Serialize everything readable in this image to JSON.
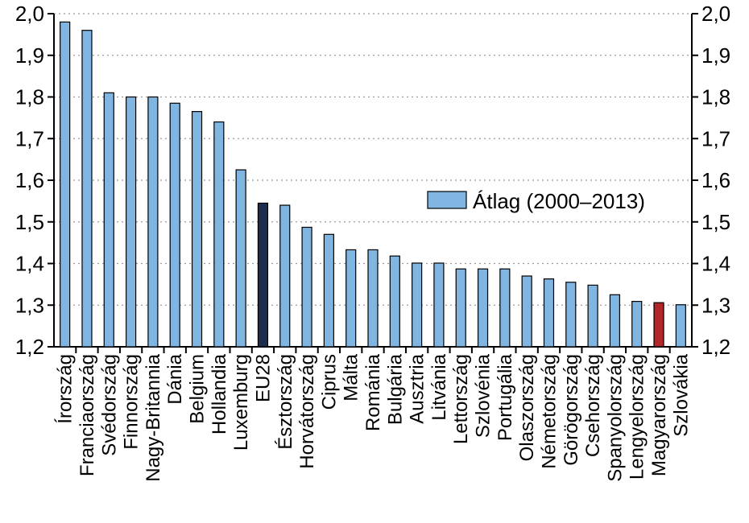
{
  "chart_data": {
    "type": "bar",
    "categories": [
      "Írország",
      "Franciaország",
      "Svédország",
      "Finnország",
      "Nagy-Britannia",
      "Dánia",
      "Belgium",
      "Hollandia",
      "Luxemburg",
      "EU28",
      "Észtország",
      "Horvátország",
      "Ciprus",
      "Málta",
      "Románia",
      "Bulgária",
      "Ausztria",
      "Litvánia",
      "Lettország",
      "Szlovénia",
      "Portugália",
      "Olaszország",
      "Németország",
      "Görögország",
      "Csehország",
      "Spanyolország",
      "Lengyelország",
      "Magyarország",
      "Szlovákia"
    ],
    "series": [
      {
        "name": "Átlag (2000–2013)",
        "values": [
          1.98,
          1.96,
          1.81,
          1.8,
          1.8,
          1.785,
          1.765,
          1.74,
          1.625,
          1.545,
          1.54,
          1.487,
          1.47,
          1.433,
          1.433,
          1.418,
          1.401,
          1.401,
          1.387,
          1.387,
          1.387,
          1.37,
          1.363,
          1.355,
          1.348,
          1.325,
          1.309,
          1.306,
          1.301
        ]
      }
    ],
    "ylim": [
      1.2,
      2.0
    ],
    "yticks": [
      "1,2",
      "1,3",
      "1,4",
      "1,5",
      "1,6",
      "1,7",
      "1,8",
      "1,9",
      "2,0"
    ],
    "grid": true,
    "legend_position": "right",
    "colors": {
      "default": "#7fb5e0",
      "highlight_EU28": "#1d2d50",
      "highlight_Magyarország": "#b3262a",
      "grid": "#999999"
    }
  }
}
